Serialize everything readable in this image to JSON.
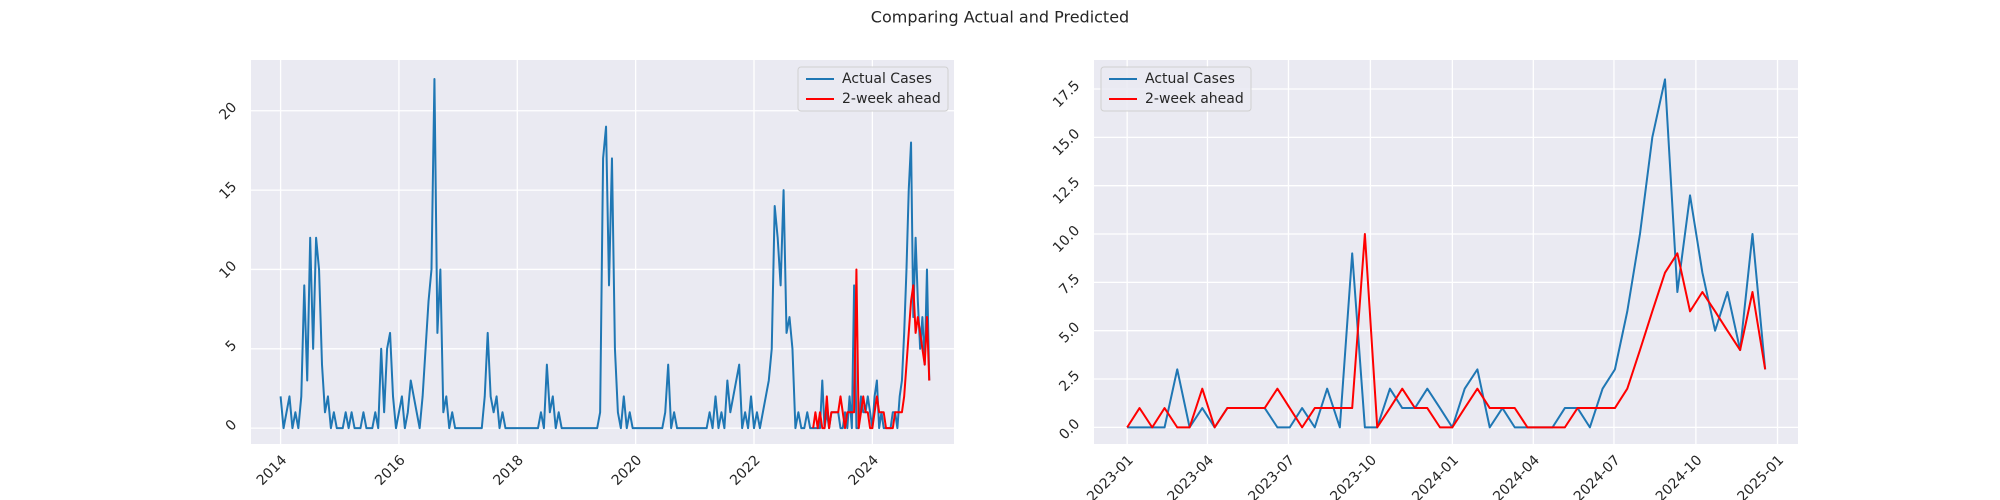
{
  "title": "Comparing Actual and Predicted",
  "chart_data": [
    {
      "type": "line",
      "xlim": [
        2013.5,
        2025.38
      ],
      "ylim": [
        -1.0,
        23.2
      ],
      "xticks": [
        2014,
        2016,
        2018,
        2020,
        2022,
        2024
      ],
      "yticks": [
        0,
        5,
        10,
        15,
        20
      ],
      "grid": true,
      "legend": "upper right",
      "series": [
        {
          "name": "Actual Cases",
          "color": "#1f77b4",
          "x": [
            2014.0,
            2014.05,
            2014.1,
            2014.15,
            2014.2,
            2014.25,
            2014.3,
            2014.35,
            2014.4,
            2014.45,
            2014.5,
            2014.55,
            2014.6,
            2014.65,
            2014.7,
            2014.75,
            2014.8,
            2014.85,
            2014.9,
            2014.95,
            2015.0,
            2015.05,
            2015.1,
            2015.15,
            2015.2,
            2015.25,
            2015.3,
            2015.35,
            2015.4,
            2015.45,
            2015.5,
            2015.55,
            2015.6,
            2015.65,
            2015.7,
            2015.75,
            2015.8,
            2015.85,
            2015.9,
            2015.95,
            2016.0,
            2016.05,
            2016.1,
            2016.15,
            2016.2,
            2016.25,
            2016.3,
            2016.35,
            2016.4,
            2016.45,
            2016.5,
            2016.55,
            2016.6,
            2016.65,
            2016.7,
            2016.75,
            2016.8,
            2016.85,
            2016.9,
            2016.95,
            2017.0,
            2017.05,
            2017.1,
            2017.15,
            2017.2,
            2017.25,
            2017.3,
            2017.35,
            2017.4,
            2017.45,
            2017.5,
            2017.55,
            2017.6,
            2017.65,
            2017.7,
            2017.75,
            2017.8,
            2017.85,
            2017.9,
            2017.95,
            2018.0,
            2018.05,
            2018.1,
            2018.15,
            2018.2,
            2018.25,
            2018.3,
            2018.35,
            2018.4,
            2018.45,
            2018.5,
            2018.55,
            2018.6,
            2018.65,
            2018.7,
            2018.75,
            2018.8,
            2018.85,
            2018.9,
            2018.95,
            2019.0,
            2019.05,
            2019.1,
            2019.15,
            2019.2,
            2019.25,
            2019.3,
            2019.35,
            2019.4,
            2019.45,
            2019.5,
            2019.55,
            2019.6,
            2019.65,
            2019.7,
            2019.75,
            2019.8,
            2019.85,
            2019.9,
            2019.95,
            2020.0,
            2020.05,
            2020.1,
            2020.15,
            2020.2,
            2020.25,
            2020.3,
            2020.35,
            2020.4,
            2020.45,
            2020.5,
            2020.55,
            2020.6,
            2020.65,
            2020.7,
            2020.75,
            2020.8,
            2020.85,
            2020.9,
            2020.95,
            2021.0,
            2021.05,
            2021.1,
            2021.15,
            2021.2,
            2021.25,
            2021.3,
            2021.35,
            2021.4,
            2021.45,
            2021.5,
            2021.55,
            2021.6,
            2021.65,
            2021.7,
            2021.75,
            2021.8,
            2021.85,
            2021.9,
            2021.95,
            2022.0,
            2022.05,
            2022.1,
            2022.15,
            2022.2,
            2022.25,
            2022.3,
            2022.35,
            2022.4,
            2022.45,
            2022.5,
            2022.55,
            2022.6,
            2022.65,
            2022.7,
            2022.75,
            2022.8,
            2022.85,
            2022.9,
            2022.95,
            2023.0,
            2023.038,
            2023.077,
            2023.115,
            2023.154,
            2023.192,
            2023.231,
            2023.269,
            2023.308,
            2023.346,
            2023.385,
            2023.423,
            2023.462,
            2023.5,
            2023.538,
            2023.577,
            2023.615,
            2023.654,
            2023.692,
            2023.731,
            2023.769,
            2023.808,
            2023.846,
            2023.885,
            2023.923,
            2023.962,
            2024.0,
            2024.038,
            2024.077,
            2024.115,
            2024.154,
            2024.192,
            2024.231,
            2024.269,
            2024.308,
            2024.346,
            2024.385,
            2024.423,
            2024.462,
            2024.5,
            2024.538,
            2024.577,
            2024.615,
            2024.654,
            2024.692,
            2024.731,
            2024.769,
            2024.808,
            2024.846,
            2024.885,
            2024.923,
            2024.962
          ],
          "values": [
            2,
            0,
            1,
            2,
            0,
            1,
            0,
            2,
            9,
            3,
            12,
            5,
            12,
            10,
            4,
            1,
            2,
            0,
            1,
            0,
            0,
            0,
            1,
            0,
            1,
            0,
            0,
            0,
            1,
            0,
            0,
            0,
            1,
            0,
            5,
            1,
            5,
            6,
            2,
            0,
            1,
            2,
            0,
            1,
            3,
            2,
            1,
            0,
            2,
            5,
            8,
            10,
            22,
            6,
            10,
            1,
            2,
            0,
            1,
            0,
            0,
            0,
            0,
            0,
            0,
            0,
            0,
            0,
            0,
            2,
            6,
            2,
            1,
            2,
            0,
            1,
            0,
            0,
            0,
            0,
            0,
            0,
            0,
            0,
            0,
            0,
            0,
            0,
            1,
            0,
            4,
            1,
            2,
            0,
            1,
            0,
            0,
            0,
            0,
            0,
            0,
            0,
            0,
            0,
            0,
            0,
            0,
            0,
            1,
            17,
            19,
            9,
            17,
            5,
            1,
            0,
            2,
            0,
            1,
            0,
            0,
            0,
            0,
            0,
            0,
            0,
            0,
            0,
            0,
            0,
            1,
            4,
            0,
            1,
            0,
            0,
            0,
            0,
            0,
            0,
            0,
            0,
            0,
            0,
            0,
            1,
            0,
            2,
            0,
            1,
            0,
            3,
            1,
            2,
            3,
            4,
            0,
            1,
            0,
            2,
            0,
            1,
            0,
            1,
            2,
            3,
            5,
            14,
            12,
            9,
            15,
            6,
            7,
            5,
            0,
            1,
            0,
            0,
            1,
            0,
            0,
            0,
            0,
            0,
            3,
            0,
            1,
            0,
            1,
            1,
            1,
            1,
            0,
            0,
            1,
            0,
            2,
            0,
            9,
            0,
            0,
            2,
            1,
            1,
            2,
            1,
            0,
            2,
            3,
            0,
            1,
            0,
            0,
            0,
            0,
            1,
            1,
            0,
            2,
            3,
            6,
            10,
            15,
            18,
            7,
            12,
            8,
            5,
            7,
            4,
            10,
            3
          ]
        },
        {
          "name": "2-week ahead",
          "color": "#ff0000",
          "x": [
            2023.0,
            2023.038,
            2023.077,
            2023.115,
            2023.154,
            2023.192,
            2023.231,
            2023.269,
            2023.308,
            2023.346,
            2023.385,
            2023.423,
            2023.462,
            2023.5,
            2023.538,
            2023.577,
            2023.615,
            2023.654,
            2023.692,
            2023.731,
            2023.769,
            2023.808,
            2023.846,
            2023.885,
            2023.923,
            2023.962,
            2024.0,
            2024.038,
            2024.077,
            2024.115,
            2024.154,
            2024.192,
            2024.231,
            2024.269,
            2024.308,
            2024.346,
            2024.385,
            2024.423,
            2024.462,
            2024.5,
            2024.538,
            2024.577,
            2024.615,
            2024.654,
            2024.692,
            2024.731,
            2024.769,
            2024.808,
            2024.846,
            2024.885,
            2024.923,
            2024.962
          ],
          "values": [
            0,
            1,
            0,
            1,
            0,
            0,
            2,
            0,
            1,
            1,
            1,
            1,
            2,
            1,
            0,
            1,
            1,
            1,
            1,
            10,
            0,
            1,
            2,
            1,
            1,
            0,
            0,
            1,
            2,
            1,
            1,
            1,
            0,
            0,
            0,
            0,
            1,
            1,
            1,
            1,
            2,
            4,
            6,
            8,
            9,
            6,
            7,
            6,
            5,
            4,
            7,
            3
          ]
        }
      ]
    },
    {
      "type": "line",
      "xlim": [
        2022.898,
        2025.063
      ],
      "ylim": [
        -0.86,
        19.0
      ],
      "xticks": [
        {
          "value": 2023.0,
          "label": "2023-01"
        },
        {
          "value": 2023.247,
          "label": "2023-04"
        },
        {
          "value": 2023.496,
          "label": "2023-07"
        },
        {
          "value": 2023.748,
          "label": "2023-10"
        },
        {
          "value": 2024.0,
          "label": "2024-01"
        },
        {
          "value": 2024.249,
          "label": "2024-04"
        },
        {
          "value": 2024.497,
          "label": "2024-07"
        },
        {
          "value": 2024.749,
          "label": "2024-10"
        },
        {
          "value": 2025.0,
          "label": "2025-01"
        }
      ],
      "yticks": [
        {
          "value": 0,
          "label": "0.0"
        },
        2.5,
        {
          "value": 5,
          "label": "5.0"
        },
        7.5,
        {
          "value": 10,
          "label": "10.0"
        },
        12.5,
        {
          "value": 15,
          "label": "15.0"
        },
        17.5
      ],
      "grid": true,
      "legend": "upper left",
      "series": [
        {
          "name": "Actual Cases",
          "color": "#1f77b4",
          "x": [
            2023.0,
            2023.038,
            2023.077,
            2023.115,
            2023.154,
            2023.192,
            2023.231,
            2023.269,
            2023.308,
            2023.346,
            2023.385,
            2023.423,
            2023.462,
            2023.5,
            2023.538,
            2023.577,
            2023.615,
            2023.654,
            2023.692,
            2023.731,
            2023.769,
            2023.808,
            2023.846,
            2023.885,
            2023.923,
            2023.962,
            2024.0,
            2024.038,
            2024.077,
            2024.115,
            2024.154,
            2024.192,
            2024.231,
            2024.269,
            2024.308,
            2024.346,
            2024.385,
            2024.423,
            2024.462,
            2024.5,
            2024.538,
            2024.577,
            2024.615,
            2024.654,
            2024.692,
            2024.731,
            2024.769,
            2024.808,
            2024.846,
            2024.885,
            2024.923,
            2024.962
          ],
          "values": [
            0,
            0,
            0,
            0,
            3,
            0,
            1,
            0,
            1,
            1,
            1,
            1,
            0,
            0,
            1,
            0,
            2,
            0,
            9,
            0,
            0,
            2,
            1,
            1,
            2,
            1,
            0,
            2,
            3,
            0,
            1,
            0,
            0,
            0,
            0,
            1,
            1,
            0,
            2,
            3,
            6,
            10,
            15,
            18,
            7,
            12,
            8,
            5,
            7,
            4,
            10,
            3
          ]
        },
        {
          "name": "2-week ahead",
          "color": "#ff0000",
          "x": [
            2023.0,
            2023.038,
            2023.077,
            2023.115,
            2023.154,
            2023.192,
            2023.231,
            2023.269,
            2023.308,
            2023.346,
            2023.385,
            2023.423,
            2023.462,
            2023.5,
            2023.538,
            2023.577,
            2023.615,
            2023.654,
            2023.692,
            2023.731,
            2023.769,
            2023.808,
            2023.846,
            2023.885,
            2023.923,
            2023.962,
            2024.0,
            2024.038,
            2024.077,
            2024.115,
            2024.154,
            2024.192,
            2024.231,
            2024.269,
            2024.308,
            2024.346,
            2024.385,
            2024.423,
            2024.462,
            2024.5,
            2024.538,
            2024.577,
            2024.615,
            2024.654,
            2024.692,
            2024.731,
            2024.769,
            2024.808,
            2024.846,
            2024.885,
            2024.923,
            2024.962
          ],
          "values": [
            0,
            1,
            0,
            1,
            0,
            0,
            2,
            0,
            1,
            1,
            1,
            1,
            2,
            1,
            0,
            1,
            1,
            1,
            1,
            10,
            0,
            1,
            2,
            1,
            1,
            0,
            0,
            1,
            2,
            1,
            1,
            1,
            0,
            0,
            0,
            0,
            1,
            1,
            1,
            1,
            2,
            4,
            6,
            8,
            9,
            6,
            7,
            6,
            5,
            4,
            7,
            3
          ]
        }
      ]
    }
  ]
}
